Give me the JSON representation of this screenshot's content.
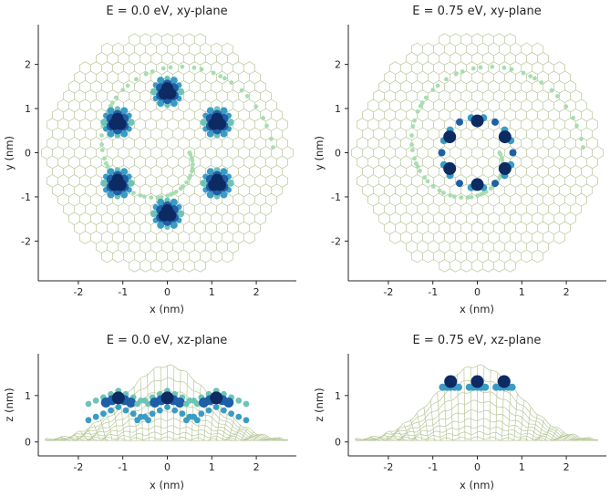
{
  "chart_data": [
    {
      "type": "scatter",
      "title": "E = 0.0 eV, xy-plane",
      "xlabel": "x (nm)",
      "ylabel": "y (nm)",
      "xlim": [
        -2.9,
        2.9
      ],
      "ylim": [
        -2.9,
        2.9
      ],
      "xticks": [
        "-2",
        "-1",
        "0",
        "1",
        "2"
      ],
      "yticks": [
        "-2",
        "-1",
        "0",
        "1",
        "2"
      ],
      "lobe_centers": [
        [
          0,
          1.38
        ],
        [
          -1.12,
          0.69
        ],
        [
          1.12,
          0.69
        ],
        [
          -1.12,
          -0.69
        ],
        [
          1.12,
          -0.69
        ],
        [
          0,
          -1.38
        ]
      ]
    },
    {
      "type": "scatter",
      "title": "E = 0.75 eV, xy-plane",
      "xlabel": "x (nm)",
      "ylabel": "y (nm)",
      "xlim": [
        -2.9,
        2.9
      ],
      "ylim": [
        -2.9,
        2.9
      ],
      "xticks": [
        "-2",
        "-1",
        "0",
        "1",
        "2"
      ],
      "yticks": [
        "-2",
        "-1",
        "0",
        "1",
        "2"
      ],
      "ring_points": [
        [
          0,
          0.72
        ],
        [
          0.62,
          0.36
        ],
        [
          0.62,
          -0.36
        ],
        [
          0,
          -0.72
        ],
        [
          -0.62,
          -0.36
        ],
        [
          -0.62,
          0.36
        ]
      ]
    },
    {
      "type": "scatter",
      "title": "E = 0.0 eV, xz-plane",
      "xlabel": "x (nm)",
      "ylabel": "z (nm)",
      "xlim": [
        -2.9,
        2.9
      ],
      "ylim": [
        -0.3,
        1.9
      ],
      "xticks": [
        "-2",
        "-1",
        "0",
        "1",
        "2"
      ],
      "yticks": [
        "0",
        "1"
      ],
      "lobe_centers": [
        [
          -1.1,
          0.95
        ],
        [
          0,
          0.95
        ],
        [
          1.1,
          0.95
        ]
      ]
    },
    {
      "type": "scatter",
      "title": "E = 0.75 eV, xz-plane",
      "xlabel": "x (nm)",
      "ylabel": "z (nm)",
      "xlim": [
        -2.9,
        2.9
      ],
      "ylim": [
        -0.3,
        1.9
      ],
      "xticks": [
        "-2",
        "-1",
        "0",
        "1",
        "2"
      ],
      "yticks": [
        "0",
        "1"
      ],
      "lobe_centers": [
        [
          -0.6,
          1.3
        ],
        [
          0,
          1.3
        ],
        [
          0.6,
          1.3
        ]
      ]
    }
  ],
  "colors": {
    "lattice": "#b8c79a",
    "deep": "#0d2a63",
    "mid": "#1f5fa8",
    "light": "#3a9cc4",
    "teal": "#6cc4b8",
    "pale": "#a8ddb0"
  }
}
